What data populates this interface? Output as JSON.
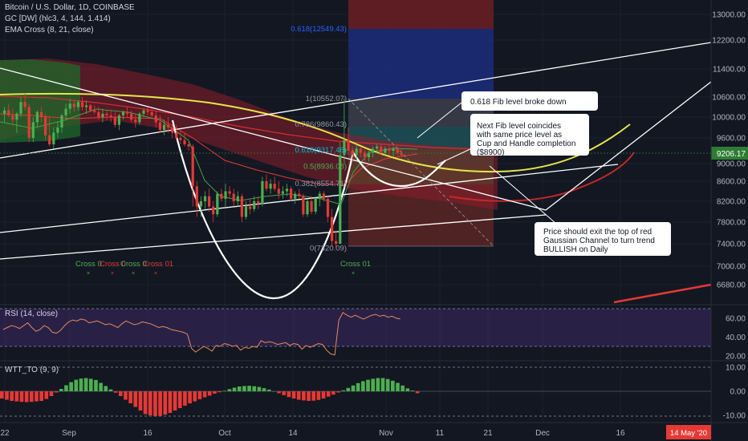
{
  "header": {
    "symbol_title": "Bitcoin / U.S. Dollar, 1D, COINBASE",
    "indicator_gc": "GC [DW] (hlc3, 4, 144, 1.414)",
    "indicator_ema": "EMA Cross (8, 21, close)"
  },
  "colors": {
    "background": "#131722",
    "up_candle": "#4caf50",
    "down_candle": "#e53935",
    "channel_green": "#1b5e20",
    "channel_red": "#7f1d1d",
    "rsi_line": "#e58a5e",
    "rsi_band": "#3d2a63",
    "current_price_badge": "#2e7d32",
    "date_badge": "#e53935"
  },
  "chart_data": [
    {
      "type": "candlestick",
      "pane": "price",
      "y_axis": {
        "ticks": [
          6680,
          7000,
          7400,
          7800,
          8200,
          8600,
          9000,
          9600,
          10000,
          10600,
          11400,
          12200,
          13000
        ],
        "tick_labels": [
          "6680.00",
          "7000.00",
          "7400.00",
          "7800.00",
          "8200.00",
          "8600.00",
          "9000.00",
          "9600.00",
          "10000.00",
          "10600.00",
          "11400.00",
          "12200.00",
          "13000.00"
        ]
      },
      "x_axis": {
        "tick_labels": [
          "22",
          "Sep",
          "16",
          "Oct",
          "14",
          "Nov",
          "11",
          "21",
          "Dec",
          "16"
        ]
      },
      "current_price": 9206.17,
      "current_price_label": "9206.17",
      "date_badge_label": "14 May '20",
      "fib_levels": [
        {
          "label": "0.618(12549.43)",
          "value": 12549.43
        },
        {
          "label": "1(10552.07)",
          "value": 10552.07
        },
        {
          "label": "0.786(9860.43)",
          "value": 9860.43
        },
        {
          "label": "0.618(9317.46)",
          "value": 9317.46
        },
        {
          "label": "0.5(8936.08)",
          "value": 8936.08
        },
        {
          "label": "0.382(8554.71)",
          "value": 8554.71
        },
        {
          "label": "0(7320.09)",
          "value": 7320.09
        }
      ],
      "cross_labels": [
        "Cross 0",
        "Cross 0",
        "Cross 0",
        "Cross 01",
        "Cross 01"
      ],
      "annotations": [
        "0.618 Fib level broke down",
        "Next Fib level coincides with same price level as Cup and Handle completion ($8900)",
        "Price should exit the top of red Gaussian Channel to turn trend BULLISH on Daily"
      ],
      "candles": [
        {
          "o": 10100,
          "h": 10300,
          "l": 9900,
          "c": 10200
        },
        {
          "o": 10200,
          "h": 10400,
          "l": 10000,
          "c": 10050
        },
        {
          "o": 10050,
          "h": 10250,
          "l": 9850,
          "c": 9950
        },
        {
          "o": 9950,
          "h": 10150,
          "l": 9700,
          "c": 10100
        },
        {
          "o": 10100,
          "h": 10600,
          "l": 10000,
          "c": 10450
        },
        {
          "o": 10450,
          "h": 10700,
          "l": 10200,
          "c": 10300
        },
        {
          "o": 10300,
          "h": 10400,
          "l": 9500,
          "c": 9600
        },
        {
          "o": 9600,
          "h": 10000,
          "l": 9500,
          "c": 9900
        },
        {
          "o": 9900,
          "h": 10200,
          "l": 9800,
          "c": 10150
        },
        {
          "o": 10150,
          "h": 10300,
          "l": 9900,
          "c": 10000
        },
        {
          "o": 10000,
          "h": 10100,
          "l": 9550,
          "c": 9650
        },
        {
          "o": 9650,
          "h": 10000,
          "l": 9400,
          "c": 9450
        },
        {
          "o": 9450,
          "h": 9800,
          "l": 9350,
          "c": 9700
        },
        {
          "o": 9700,
          "h": 9900,
          "l": 9600,
          "c": 9800
        },
        {
          "o": 9800,
          "h": 10100,
          "l": 9700,
          "c": 10050
        },
        {
          "o": 10050,
          "h": 10400,
          "l": 9950,
          "c": 10250
        },
        {
          "o": 10250,
          "h": 10550,
          "l": 10100,
          "c": 10400
        },
        {
          "o": 10400,
          "h": 10500,
          "l": 10150,
          "c": 10300
        },
        {
          "o": 10300,
          "h": 10500,
          "l": 10200,
          "c": 10450
        },
        {
          "o": 10450,
          "h": 10600,
          "l": 10200,
          "c": 10300
        },
        {
          "o": 10300,
          "h": 10500,
          "l": 10100,
          "c": 10350
        },
        {
          "o": 10350,
          "h": 10400,
          "l": 10150,
          "c": 10200
        },
        {
          "o": 10200,
          "h": 10350,
          "l": 10100,
          "c": 10150
        },
        {
          "o": 10150,
          "h": 10300,
          "l": 9950,
          "c": 10000
        },
        {
          "o": 10000,
          "h": 10250,
          "l": 9900,
          "c": 10100
        },
        {
          "o": 10100,
          "h": 10200,
          "l": 9950,
          "c": 10050
        },
        {
          "o": 10050,
          "h": 10200,
          "l": 9900,
          "c": 10000
        },
        {
          "o": 10000,
          "h": 10150,
          "l": 9800,
          "c": 9850
        },
        {
          "o": 9850,
          "h": 10100,
          "l": 9750,
          "c": 10050
        },
        {
          "o": 10050,
          "h": 10200,
          "l": 9950,
          "c": 10150
        },
        {
          "o": 10150,
          "h": 10300,
          "l": 10000,
          "c": 10100
        },
        {
          "o": 10100,
          "h": 10200,
          "l": 9900,
          "c": 9950
        },
        {
          "o": 9950,
          "h": 10100,
          "l": 9800,
          "c": 9900
        },
        {
          "o": 9900,
          "h": 10150,
          "l": 9850,
          "c": 10100
        },
        {
          "o": 10100,
          "h": 10250,
          "l": 10000,
          "c": 10200
        },
        {
          "o": 10200,
          "h": 10300,
          "l": 10050,
          "c": 10150
        },
        {
          "o": 10150,
          "h": 10250,
          "l": 10000,
          "c": 10050
        },
        {
          "o": 10050,
          "h": 10200,
          "l": 9800,
          "c": 9900
        },
        {
          "o": 9900,
          "h": 10050,
          "l": 9700,
          "c": 9750
        },
        {
          "o": 9750,
          "h": 9950,
          "l": 9650,
          "c": 9850
        },
        {
          "o": 9850,
          "h": 10000,
          "l": 9700,
          "c": 9800
        },
        {
          "o": 9800,
          "h": 9900,
          "l": 9600,
          "c": 9700
        },
        {
          "o": 9700,
          "h": 9850,
          "l": 9550,
          "c": 9600
        },
        {
          "o": 9600,
          "h": 9750,
          "l": 9450,
          "c": 9550
        },
        {
          "o": 9550,
          "h": 9700,
          "l": 9400,
          "c": 9450
        },
        {
          "o": 9450,
          "h": 9550,
          "l": 9300,
          "c": 9400
        },
        {
          "o": 9400,
          "h": 9450,
          "l": 8100,
          "c": 8500
        },
        {
          "o": 8500,
          "h": 8600,
          "l": 7900,
          "c": 8100
        },
        {
          "o": 8100,
          "h": 8300,
          "l": 7900,
          "c": 8200
        },
        {
          "o": 8200,
          "h": 8400,
          "l": 8050,
          "c": 8300
        },
        {
          "o": 8300,
          "h": 8450,
          "l": 8000,
          "c": 8100
        },
        {
          "o": 8100,
          "h": 8200,
          "l": 7800,
          "c": 7950
        },
        {
          "o": 7950,
          "h": 8400,
          "l": 7900,
          "c": 8350
        },
        {
          "o": 8350,
          "h": 8450,
          "l": 8200,
          "c": 8250
        },
        {
          "o": 8250,
          "h": 8550,
          "l": 8100,
          "c": 8400
        },
        {
          "o": 8400,
          "h": 8500,
          "l": 8250,
          "c": 8350
        },
        {
          "o": 8350,
          "h": 8450,
          "l": 8100,
          "c": 8200
        },
        {
          "o": 8200,
          "h": 8400,
          "l": 8100,
          "c": 8300
        },
        {
          "o": 8300,
          "h": 8350,
          "l": 7800,
          "c": 7900
        },
        {
          "o": 7900,
          "h": 8200,
          "l": 7850,
          "c": 8100
        },
        {
          "o": 8100,
          "h": 8250,
          "l": 7950,
          "c": 8050
        },
        {
          "o": 8050,
          "h": 8300,
          "l": 8000,
          "c": 8200
        },
        {
          "o": 8200,
          "h": 8300,
          "l": 8050,
          "c": 8150
        },
        {
          "o": 8150,
          "h": 8700,
          "l": 8100,
          "c": 8600
        },
        {
          "o": 8600,
          "h": 8750,
          "l": 8400,
          "c": 8450
        },
        {
          "o": 8450,
          "h": 8650,
          "l": 8350,
          "c": 8550
        },
        {
          "o": 8550,
          "h": 8700,
          "l": 8400,
          "c": 8450
        },
        {
          "o": 8450,
          "h": 8600,
          "l": 8250,
          "c": 8350
        },
        {
          "o": 8350,
          "h": 8500,
          "l": 8250,
          "c": 8400
        },
        {
          "o": 8400,
          "h": 8550,
          "l": 8300,
          "c": 8450
        },
        {
          "o": 8450,
          "h": 8500,
          "l": 8200,
          "c": 8250
        },
        {
          "o": 8250,
          "h": 8400,
          "l": 8150,
          "c": 8350
        },
        {
          "o": 8350,
          "h": 8450,
          "l": 8250,
          "c": 8300
        },
        {
          "o": 8300,
          "h": 8350,
          "l": 7900,
          "c": 7950
        },
        {
          "o": 7950,
          "h": 8250,
          "l": 7900,
          "c": 8200
        },
        {
          "o": 8200,
          "h": 8300,
          "l": 7950,
          "c": 8000
        },
        {
          "o": 8000,
          "h": 8300,
          "l": 7950,
          "c": 8250
        },
        {
          "o": 8250,
          "h": 8400,
          "l": 8100,
          "c": 8350
        },
        {
          "o": 8350,
          "h": 8400,
          "l": 8200,
          "c": 8250
        },
        {
          "o": 8250,
          "h": 8300,
          "l": 7800,
          "c": 7900
        },
        {
          "o": 7900,
          "h": 8050,
          "l": 7350,
          "c": 7450
        },
        {
          "o": 7450,
          "h": 7650,
          "l": 7320,
          "c": 7400
        },
        {
          "o": 7400,
          "h": 9500,
          "l": 7400,
          "c": 9200
        },
        {
          "o": 9200,
          "h": 10552,
          "l": 9000,
          "c": 9550
        },
        {
          "o": 9550,
          "h": 9800,
          "l": 9200,
          "c": 9300
        },
        {
          "o": 9300,
          "h": 9400,
          "l": 9050,
          "c": 9200
        },
        {
          "o": 9200,
          "h": 9450,
          "l": 9100,
          "c": 9350
        },
        {
          "o": 9350,
          "h": 9400,
          "l": 9150,
          "c": 9250
        },
        {
          "o": 9250,
          "h": 9300,
          "l": 9050,
          "c": 9150
        },
        {
          "o": 9150,
          "h": 9300,
          "l": 9050,
          "c": 9250
        },
        {
          "o": 9250,
          "h": 9400,
          "l": 9150,
          "c": 9350
        },
        {
          "o": 9350,
          "h": 9450,
          "l": 9250,
          "c": 9400
        },
        {
          "o": 9400,
          "h": 9450,
          "l": 9200,
          "c": 9250
        },
        {
          "o": 9250,
          "h": 9400,
          "l": 9200,
          "c": 9350
        },
        {
          "o": 9350,
          "h": 9420,
          "l": 9200,
          "c": 9300
        },
        {
          "o": 9300,
          "h": 9400,
          "l": 9150,
          "c": 9350
        },
        {
          "o": 9350,
          "h": 9400,
          "l": 9200,
          "c": 9250
        },
        {
          "o": 9250,
          "h": 9350,
          "l": 9150,
          "c": 9200
        }
      ]
    },
    {
      "type": "line",
      "pane": "rsi",
      "title": "RSI (14, close)",
      "y_ticks": [
        20,
        40,
        60
      ],
      "y_tick_labels": [
        "20.00",
        "40.00",
        "60.00"
      ],
      "band": [
        30,
        70
      ],
      "values": [
        48,
        50,
        52,
        51,
        49,
        52,
        55,
        50,
        46,
        48,
        52,
        50,
        45,
        44,
        47,
        52,
        56,
        58,
        57,
        59,
        58,
        55,
        56,
        57,
        55,
        53,
        54,
        52,
        50,
        54,
        57,
        55,
        53,
        54,
        56,
        55,
        54,
        52,
        50,
        51,
        50,
        48,
        47,
        46,
        45,
        43,
        28,
        24,
        27,
        30,
        28,
        25,
        31,
        30,
        33,
        32,
        30,
        31,
        26,
        29,
        28,
        30,
        29,
        36,
        34,
        35,
        34,
        32,
        33,
        34,
        31,
        33,
        32,
        27,
        31,
        29,
        31,
        33,
        32,
        26,
        22,
        21,
        58,
        66,
        63,
        61,
        63,
        61,
        59,
        61,
        63,
        64,
        62,
        63,
        61,
        62,
        60,
        59
      ]
    },
    {
      "type": "bar",
      "pane": "wtt",
      "title": "WTT_TO (9, 9)",
      "y_ticks": [
        -10,
        0,
        10
      ],
      "y_tick_labels": [
        "-10.00",
        "0.00",
        "10.00"
      ],
      "values": [
        -3,
        -3.5,
        -4,
        -4.2,
        -4.4,
        -4.5,
        -4.4,
        -4.2,
        -4,
        -3.2,
        -2,
        -0.5,
        1,
        2.5,
        3.8,
        4.8,
        5.3,
        5.5,
        5.2,
        4.7,
        3.5,
        2.2,
        0.8,
        -0.6,
        -2,
        -3.5,
        -5,
        -6.5,
        -8,
        -9.5,
        -10,
        -10.3,
        -10.2,
        -9.7,
        -9,
        -8,
        -7,
        -6,
        -5,
        -4.2,
        -3.3,
        -2.5,
        -1.8,
        -1,
        -0.4,
        0.2,
        0.9,
        1.5,
        2,
        2.2,
        2.3,
        2.1,
        1.8,
        1.3,
        0.7,
        0,
        -0.8,
        -1.6,
        -2.4,
        -3,
        -3.5,
        -3.8,
        -4,
        -3.9,
        -3.6,
        -3,
        -2.2,
        -1.4,
        -0.5,
        0.4,
        1.4,
        2.4,
        3.4,
        4.2,
        4.8,
        5.2,
        5.5,
        5.5,
        5.1,
        4.4,
        3.5,
        2.4,
        1.2,
        0.3,
        -0.8
      ]
    }
  ]
}
